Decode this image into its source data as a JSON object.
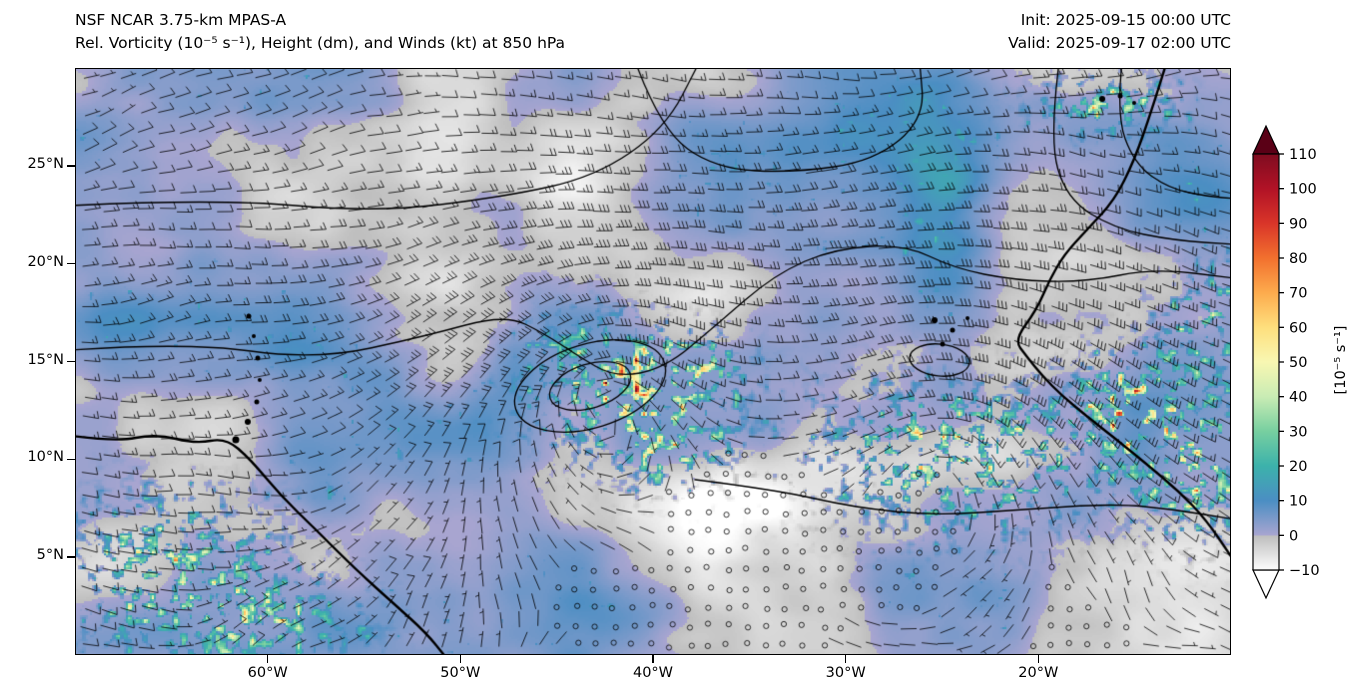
{
  "header": {
    "model_line": "NSF NCAR 3.75-km MPAS-A",
    "variable_line": "Rel. Vorticity (10⁻⁵ s⁻¹), Height (dm), and Winds (kt) at 850 hPa",
    "init_label": "Init: 2025-09-15 00:00 UTC",
    "valid_label": "Valid: 2025-09-17 02:00 UTC"
  },
  "chart_data": {
    "type": "heatmap",
    "title": "Rel. Vorticity (10⁻⁵ s⁻¹), Height (dm), and Winds (kt) at 850 hPa",
    "model": "NSF NCAR 3.75-km MPAS-A",
    "level": "850 hPa",
    "init_time": "2025-09-15 00:00 UTC",
    "valid_time": "2025-09-17 02:00 UTC",
    "fields": [
      "relative vorticity (color shading)",
      "geopotential height contours (dm)",
      "wind barbs (kt)",
      "coastlines"
    ],
    "region": "Tropical Atlantic / West Africa, approx 0-30N, 70-10W",
    "x_axis": {
      "tick_labels": [
        "60°W",
        "50°W",
        "40°W",
        "30°W",
        "20°W"
      ],
      "tick_values": [
        60,
        50,
        40,
        30,
        20
      ],
      "domain_deg_west": [
        70,
        10
      ]
    },
    "y_axis": {
      "tick_labels": [
        "25°N",
        "20°N",
        "15°N",
        "10°N",
        "5°N"
      ],
      "tick_values": [
        25,
        20,
        15,
        10,
        5
      ],
      "domain_deg_north": [
        0,
        30
      ]
    },
    "colorbar": {
      "label": "[10⁻⁵ s⁻¹]",
      "ticks": [
        {
          "v": 110,
          "label": "110"
        },
        {
          "v": 100,
          "label": "100"
        },
        {
          "v": 90,
          "label": "90"
        },
        {
          "v": 80,
          "label": "80"
        },
        {
          "v": 70,
          "label": "70"
        },
        {
          "v": 60,
          "label": "60"
        },
        {
          "v": 50,
          "label": "50"
        },
        {
          "v": 40,
          "label": "40"
        },
        {
          "v": 30,
          "label": "30"
        },
        {
          "v": 20,
          "label": "20"
        },
        {
          "v": 10,
          "label": "10"
        },
        {
          "v": 0,
          "label": "0"
        },
        {
          "v": -10,
          "label": "−10"
        }
      ],
      "stops": [
        {
          "v": -10,
          "color": "#fdfdfd"
        },
        {
          "v": -0.01,
          "color": "#bdbdbd"
        },
        {
          "v": 0,
          "color": "#a8a5d0"
        },
        {
          "v": 10,
          "color": "#4b8ec3"
        },
        {
          "v": 20,
          "color": "#3cb2ab"
        },
        {
          "v": 30,
          "color": "#77cfa0"
        },
        {
          "v": 40,
          "color": "#c9ecb4"
        },
        {
          "v": 50,
          "color": "#f8f7b2"
        },
        {
          "v": 60,
          "color": "#fedf7d"
        },
        {
          "v": 70,
          "color": "#fdab4d"
        },
        {
          "v": 80,
          "color": "#f2702e"
        },
        {
          "v": 90,
          "color": "#d93529"
        },
        {
          "v": 100,
          "color": "#b11226"
        },
        {
          "v": 110,
          "color": "#7f0c20"
        }
      ],
      "under_color": "#ffffff",
      "over_color": "#5a0016",
      "range": [
        -10,
        110
      ]
    },
    "notable_features": [
      "closed cyclonic circulation with height contours near 44W 12.5N",
      "second vorticity maximum / tropical wave near 24W 11N",
      "high vorticity speckling along the West African coast",
      "broad weak positive vorticity (purple) filaments across the basin"
    ]
  }
}
